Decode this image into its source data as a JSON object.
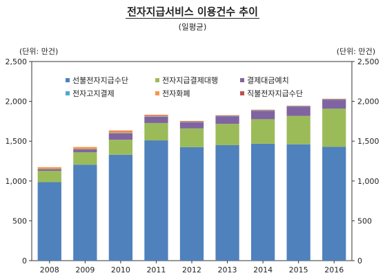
{
  "title": "전자지급서비스 이용건수 추이",
  "subtitle": "(일평균)",
  "unit_left": "(단위: 만건)",
  "unit_right": "(단위: 만건)",
  "chart_data": {
    "type": "bar",
    "stacked": true,
    "title": "전자지급서비스 이용건수 추이",
    "subtitle": "(일평균)",
    "ylabel": "(단위: 만건)",
    "ylim": [
      0,
      2500
    ],
    "yticks": [
      0,
      500,
      1000,
      1500,
      2000,
      2500
    ],
    "ytick_labels": [
      "0",
      "500",
      "1,000",
      "1,500",
      "2,000",
      "2,500"
    ],
    "grid": false,
    "legend_position": "top-inside",
    "categories": [
      "2008",
      "2009",
      "2010",
      "2011",
      "2012",
      "2013",
      "2014",
      "2015",
      "2016"
    ],
    "series": [
      {
        "name": "선불전자지급수단",
        "color": "#4f81bd",
        "values": [
          985,
          1205,
          1330,
          1510,
          1425,
          1450,
          1468,
          1460,
          1428
        ]
      },
      {
        "name": "전자지급결제대행",
        "color": "#9bbb59",
        "values": [
          142,
          155,
          188,
          218,
          235,
          268,
          308,
          358,
          480
        ]
      },
      {
        "name": "결제대금예치",
        "color": "#8064a2",
        "values": [
          22,
          38,
          82,
          80,
          78,
          95,
          105,
          115,
          112
        ]
      },
      {
        "name": "전자고지결제",
        "color": "#4bacc6",
        "values": [
          2,
          3,
          4,
          4,
          5,
          4,
          5,
          5,
          5
        ]
      },
      {
        "name": "전자화폐",
        "color": "#f79646",
        "values": [
          23,
          26,
          28,
          17,
          10,
          7,
          7,
          6,
          5
        ]
      },
      {
        "name": "직불전자지급수단",
        "color": "#c0504d",
        "values": [
          0,
          0,
          1,
          1,
          1,
          1,
          1,
          1,
          2
        ]
      }
    ]
  }
}
